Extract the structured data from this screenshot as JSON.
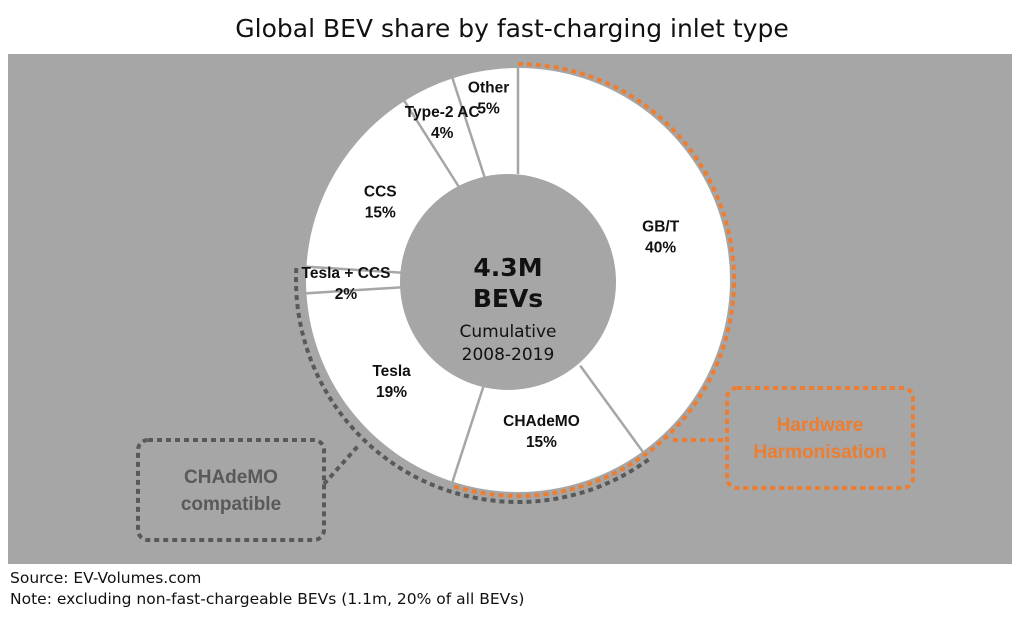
{
  "chart_data": {
    "type": "pie",
    "title": "Global BEV share by fast-charging inlet type",
    "center_label": {
      "main": "4.3M",
      "main2": "BEVs",
      "sub1": "Cumulative",
      "sub2": "2008-2019"
    },
    "slices": [
      {
        "label": "GB/T",
        "value": 40,
        "value_label": "40%"
      },
      {
        "label": "CHAdeMO",
        "value": 15,
        "value_label": "15%"
      },
      {
        "label": "Tesla",
        "value": 19,
        "value_label": "19%"
      },
      {
        "label": "Tesla + CCS",
        "value": 2,
        "value_label": "2%"
      },
      {
        "label": "CCS",
        "value": 15,
        "value_label": "15%"
      },
      {
        "label": "Type-2 AC",
        "value": 4,
        "value_label": "4%"
      },
      {
        "label": "Other",
        "value": 5,
        "value_label": "5%"
      }
    ],
    "annotations": [
      {
        "text1": "Hardware",
        "text2": "Harmonisation",
        "color": "#ED7D31"
      },
      {
        "text1": "CHAdeMO",
        "text2": "compatible",
        "color": "#595959"
      }
    ]
  },
  "colors": {
    "background": "#A6A6A6",
    "slice_fill": "#FFFFFF",
    "divider": "#A6A6A6",
    "center": "#A6A6A6",
    "accent_orange": "#ED7D31",
    "accent_gray": "#595959"
  },
  "footer": {
    "source": "Source: EV-Volumes.com",
    "note": "Note: excluding non-fast-chargeable BEVs (1.1m, 20% of all BEVs)"
  }
}
